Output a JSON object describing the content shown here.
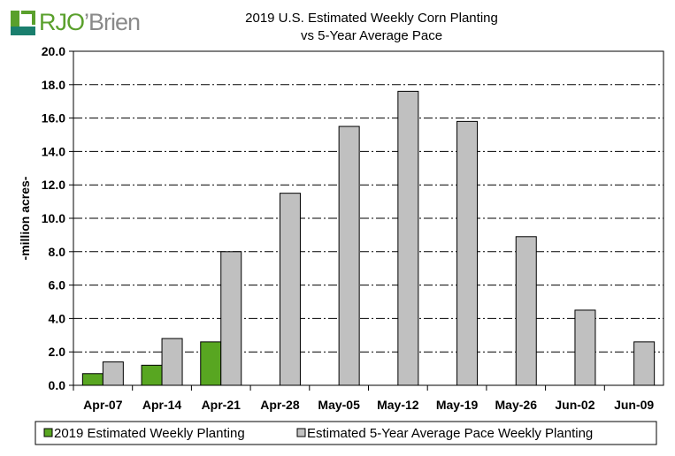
{
  "logo": {
    "text_a": "RJO",
    "text_b": "’Brien",
    "colors": [
      "#5aa02c",
      "#1a7f6e",
      "#8a8a8a"
    ]
  },
  "chart_data": {
    "type": "bar",
    "title": "2019 U.S. Estimated Weekly Corn Planting",
    "subtitle": "vs 5-Year Average Pace",
    "ylabel": "-million acres-",
    "xlabel": "",
    "ylim": [
      0,
      20
    ],
    "yticks": [
      "0.0",
      "2.0",
      "4.0",
      "6.0",
      "8.0",
      "10.0",
      "12.0",
      "14.0",
      "16.0",
      "18.0",
      "20.0"
    ],
    "grid": "horizontal dash-dot",
    "legend_placement": "bottom",
    "categories": [
      "Apr-07",
      "Apr-14",
      "Apr-21",
      "Apr-28",
      "May-05",
      "May-12",
      "May-19",
      "May-26",
      "Jun-02",
      "Jun-09"
    ],
    "series": [
      {
        "name": "2019 Estimated Weekly Planting",
        "color": "#58a621",
        "values": [
          0.7,
          1.2,
          2.6,
          null,
          null,
          null,
          null,
          null,
          null,
          null
        ]
      },
      {
        "name": "Estimated 5-Year Average Pace Weekly Planting",
        "color": "#c0c0c0",
        "values": [
          1.4,
          2.8,
          8.0,
          11.5,
          15.5,
          17.6,
          15.8,
          8.9,
          4.5,
          2.6
        ]
      }
    ]
  }
}
